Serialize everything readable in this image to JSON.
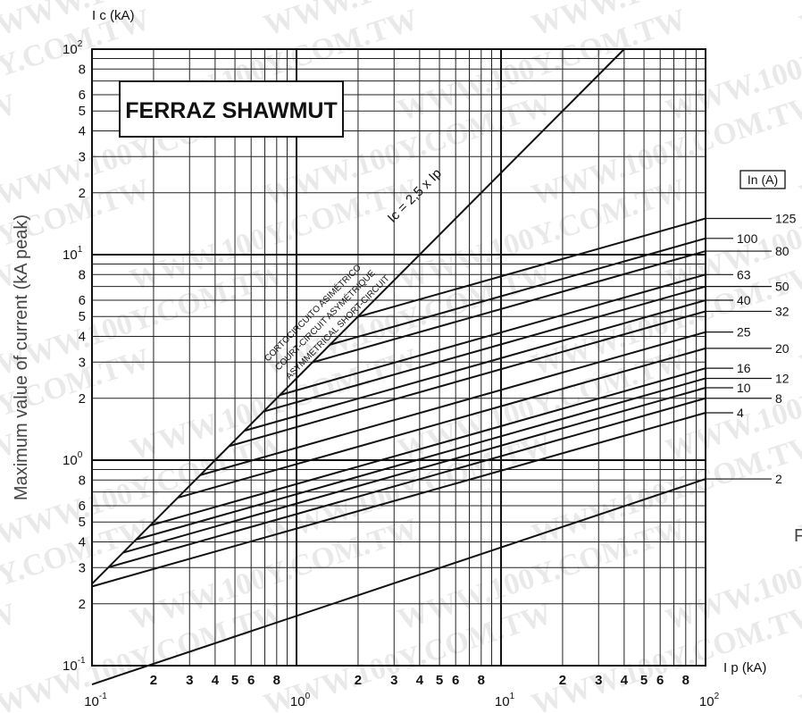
{
  "brand": "FERRAZ SHAWMUT",
  "ylabel": "Maximum value of current (kA peak)",
  "y_axis_title": "I c (kA)",
  "x_axis_title": "I p (kA)",
  "legend_title": "In (A)",
  "watermark": "WWW.100Y.COM.TW",
  "right_edge_fragment": "F",
  "diagonal": {
    "formula": "Ic = 2,5 x Ip",
    "caption_lines": [
      "CORTOCIRCUITO ASIMÉTRICO",
      "COURT-CIRCUIT ASYMÉTRIQUE",
      "ASYMMETRICAL SHORT-CIRCUIT"
    ]
  },
  "chart_data": {
    "type": "line",
    "x_scale": "log",
    "y_scale": "log",
    "xlim": [
      0.1,
      100
    ],
    "ylim": [
      0.1,
      100
    ],
    "x_decade_labels": [
      {
        "base": "10",
        "exp": "-1"
      },
      {
        "base": "10",
        "exp": "0"
      },
      {
        "base": "10",
        "exp": "1"
      },
      {
        "base": "10",
        "exp": "2"
      }
    ],
    "y_decade_labels": [
      {
        "base": "10",
        "exp": "-1"
      },
      {
        "base": "10",
        "exp": "0"
      },
      {
        "base": "10",
        "exp": "1"
      },
      {
        "base": "10",
        "exp": "2"
      }
    ],
    "minor_tick_labels": [
      "2",
      "3",
      "4",
      "5",
      "6",
      "8"
    ],
    "x_minor_tick_labels": [
      "2",
      "3",
      "4",
      "5",
      "6",
      "8"
    ],
    "limit_line": {
      "name": "Ic = 2,5 x Ip",
      "k": 2.5
    },
    "series": [
      {
        "name": "125",
        "y_at_100": 15.0,
        "slope": 0.2817
      },
      {
        "name": "100",
        "y_at_100": 12.0,
        "slope": 0.2817
      },
      {
        "name": "80",
        "y_at_100": 10.4,
        "slope": 0.2817
      },
      {
        "name": "63",
        "y_at_100": 8.0,
        "slope": 0.2817
      },
      {
        "name": "50",
        "y_at_100": 7.0,
        "slope": 0.2817
      },
      {
        "name": "40",
        "y_at_100": 6.0,
        "slope": 0.2817
      },
      {
        "name": "32",
        "y_at_100": 5.3,
        "slope": 0.2817
      },
      {
        "name": "25",
        "y_at_100": 4.2,
        "slope": 0.2817
      },
      {
        "name": "20",
        "y_at_100": 3.5,
        "slope": 0.2817
      },
      {
        "name": "16",
        "y_at_100": 2.8,
        "slope": 0.2817
      },
      {
        "name": "12",
        "y_at_100": 2.5,
        "slope": 0.2817
      },
      {
        "name": "10",
        "y_at_100": 2.25,
        "slope": 0.2817
      },
      {
        "name": "8",
        "y_at_100": 2.0,
        "slope": 0.2817
      },
      {
        "name": "4",
        "y_at_100": 1.7,
        "slope": 0.2817
      },
      {
        "name": "2",
        "y_at_100": 0.81,
        "slope": 0.3333
      }
    ],
    "grid": true
  }
}
